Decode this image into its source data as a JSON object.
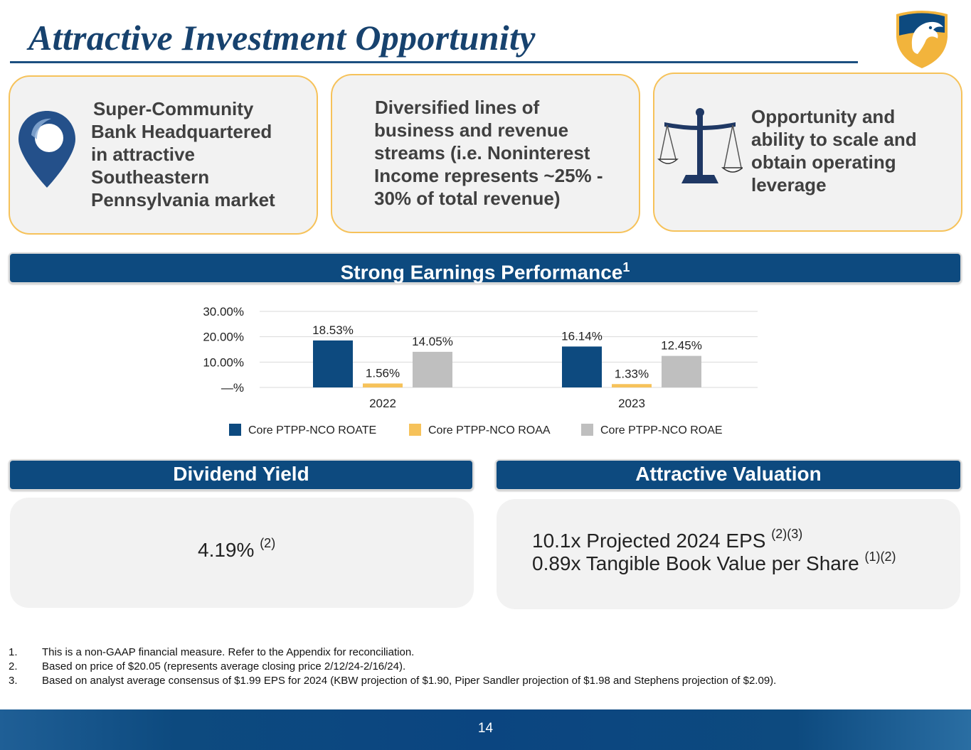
{
  "header": {
    "title": "Attractive Investment Opportunity",
    "logo_icon": "eagle-shield-logo-icon"
  },
  "cards": [
    {
      "icon": "map-pin-icon",
      "lines": [
        "Super-Community",
        "Bank Headquartered",
        "in attractive",
        "Southeastern",
        "Pennsylvania market"
      ]
    },
    {
      "icon": "",
      "lines": [
        "Diversified lines of",
        "business and revenue",
        "streams (i.e. Noninterest",
        "Income represents ~25% -",
        "30% of total revenue)"
      ]
    },
    {
      "icon": "balance-scale-icon",
      "lines": [
        "Opportunity and",
        "ability to scale and",
        "obtain operating",
        "leverage"
      ]
    }
  ],
  "earnings": {
    "heading": "Strong Earnings Performance",
    "footnote_mark": "1"
  },
  "chart_data": {
    "type": "bar",
    "title": "",
    "categories": [
      "2022",
      "2023"
    ],
    "series": [
      {
        "name": "Core PTPP-NCO ROATE",
        "values": [
          18.53,
          16.14
        ],
        "labels": [
          "18.53%",
          "16.14%"
        ],
        "color": "#0d4a7f"
      },
      {
        "name": "Core PTPP-NCO ROAA",
        "values": [
          1.56,
          1.33
        ],
        "labels": [
          "1.56%",
          "1.33%"
        ],
        "color": "#f6c25a"
      },
      {
        "name": "Core PTPP-NCO ROAE",
        "values": [
          14.05,
          12.45
        ],
        "labels": [
          "14.05%",
          "12.45%"
        ],
        "color": "#bfbfbf"
      }
    ],
    "y_ticks": [
      0,
      10,
      20,
      30
    ],
    "y_tick_labels": [
      "—%",
      "10.00%",
      "20.00%",
      "30.00%"
    ],
    "ylim": [
      0,
      30
    ],
    "xlabel": "",
    "ylabel": "",
    "legend_position": "bottom"
  },
  "dividend": {
    "heading": "Dividend Yield",
    "value": "4.19%",
    "note": "(2)"
  },
  "valuation": {
    "heading": "Attractive Valuation",
    "line1": "10.1x Projected 2024 EPS",
    "line1_note": "(2)(3)",
    "line2": "0.89x Tangible Book Value per Share",
    "line2_note": "(1)(2)"
  },
  "footnotes": [
    {
      "num": "1.",
      "text": "This is a non-GAAP financial measure. Refer to the Appendix for reconciliation."
    },
    {
      "num": "2.",
      "text": "Based on price of $20.05 (represents average closing price 2/12/24-2/16/24)."
    },
    {
      "num": "3.",
      "text": "Based on analyst average consensus of $1.99 EPS for 2024 (KBW projection of $1.90, Piper Sandler projection of $1.98 and Stephens projection of $2.09)."
    }
  ],
  "footer": {
    "page_number": "14"
  }
}
